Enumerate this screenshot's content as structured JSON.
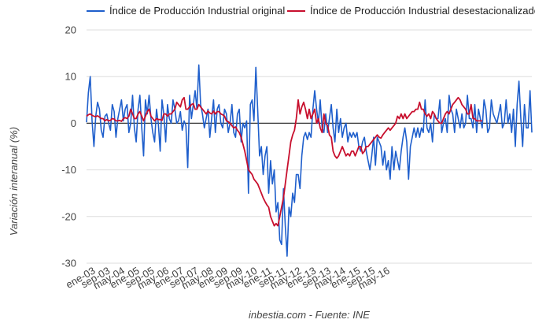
{
  "chart_data": {
    "type": "line",
    "ylabel": "Variación interanual (%)",
    "source": "inbestia.com - Fuente: INE",
    "ylim": [
      -30,
      20
    ],
    "yticks": [
      20,
      10,
      0,
      -10,
      -20,
      -30
    ],
    "grid": "horizontal",
    "legend_position": "top",
    "x_start": "2003-01",
    "x_step": "monthly",
    "xtick_labels": [
      "ene-03",
      "sep-03",
      "may-04",
      "ene-05",
      "sep-05",
      "may-06",
      "ene-07",
      "sep-07",
      "may-08",
      "ene-09",
      "sep-09",
      "may-10",
      "ene-11",
      "sep-11",
      "may-12",
      "ene-13",
      "sep-13",
      "may-14",
      "ene-15",
      "sep-15",
      "may-16"
    ],
    "series": [
      {
        "name": "Índice de Producción Industrial original",
        "color": "#1f5fcc",
        "values": [
          0.2,
          6.5,
          10,
          0.5,
          -5,
          1.5,
          4.5,
          3,
          -1.5,
          -3,
          1.5,
          2,
          0,
          -1.5,
          4,
          2.5,
          -3,
          1,
          3,
          5,
          0.5,
          3,
          4,
          -2,
          0,
          6,
          -1,
          -4,
          3,
          6,
          -1,
          -7,
          5,
          2,
          6,
          1,
          -2,
          -4,
          3,
          0,
          -6,
          5,
          2,
          -4,
          4,
          1,
          0,
          5,
          3,
          0,
          0.5,
          2.5,
          -1.5,
          0.5,
          -0.5,
          -9.5,
          6,
          1,
          4,
          7,
          3,
          12.5,
          4,
          2,
          -1,
          1,
          3,
          -3,
          1,
          5,
          -2,
          3,
          4,
          0,
          -1,
          3,
          2,
          -2,
          0,
          4,
          -2,
          -3,
          2,
          3,
          -4,
          0,
          -1,
          0.5,
          -15,
          4,
          5,
          0.5,
          12,
          3,
          -7,
          -5,
          -11,
          -7,
          -5,
          -15,
          -8,
          -13,
          -10,
          -19,
          -17,
          -25,
          -26,
          -14,
          -22,
          -28.5,
          -18,
          -20,
          -15,
          -17,
          -11,
          -11,
          -14,
          -7,
          -3,
          -2,
          -3.5,
          -2,
          -3,
          3,
          7,
          3,
          0,
          5,
          -1,
          -2,
          2,
          -2,
          1,
          4,
          -1,
          -4,
          3,
          -2,
          1,
          -3,
          -1,
          0,
          -4,
          -2,
          -3,
          -2,
          -3,
          -2,
          -5,
          -6,
          -4,
          -3,
          -6,
          -8,
          -10,
          -7,
          -3,
          -9,
          -3,
          -4,
          -5,
          -9,
          -6,
          -10,
          -8,
          -12,
          -5,
          -10,
          -6,
          -8,
          -10,
          -6,
          -3,
          -1,
          -4,
          -12,
          -5,
          -3,
          -1,
          -3,
          -1,
          -3,
          -1,
          -2,
          5,
          -1,
          -2,
          0,
          -4,
          2,
          1,
          1,
          5,
          -2,
          0,
          1,
          -2,
          6,
          3,
          2,
          -2,
          3,
          1,
          -1,
          2,
          -1,
          0,
          6,
          1,
          1,
          -1,
          4,
          -2,
          3,
          1,
          -1,
          5,
          3,
          -2,
          -1,
          5,
          2,
          1,
          0,
          2,
          4,
          -1,
          0,
          5,
          0,
          2,
          -2,
          3,
          -5,
          4,
          9,
          1,
          -5,
          4,
          -1,
          -1,
          7,
          -2
        ]
      },
      {
        "name": "Índice de Producción Industrial desestacionalizado",
        "color": "#c8102e",
        "values": [
          1.5,
          1.8,
          2,
          1.7,
          1.5,
          1.4,
          1.6,
          1.3,
          1,
          1,
          0.5,
          0.8,
          0.5,
          0.6,
          1,
          0.9,
          0.5,
          0.5,
          0.6,
          0.4,
          1,
          1.2,
          1,
          1.5,
          3,
          2,
          1,
          1,
          2,
          2.5,
          1.5,
          0.5,
          1.5,
          2.5,
          3,
          1.5,
          1,
          0.5,
          1,
          0.8,
          0.8,
          0.6,
          2,
          2,
          1.5,
          2,
          2,
          2.5,
          3,
          4.5,
          4,
          3.5,
          5,
          5.5,
          3,
          3,
          3.5,
          4,
          4.2,
          3,
          3,
          4,
          3.5,
          3,
          2.5,
          2,
          2.6,
          2.2,
          2,
          2.6,
          2,
          2.5,
          2.5,
          2,
          1.8,
          1.5,
          0.5,
          0.3,
          0,
          -0.5,
          -1,
          -0.8,
          -1.5,
          -2,
          -3,
          -4.5,
          -6,
          -8,
          -10,
          -10.5,
          -11,
          -12,
          -12.5,
          -13,
          -14,
          -15,
          -16,
          -16.8,
          -17.5,
          -18,
          -20,
          -21,
          -22,
          -21.5,
          -22,
          -20,
          -18,
          -16,
          -13,
          -10,
          -7,
          -4,
          -2.5,
          -1.5,
          1,
          5,
          2,
          3.5,
          4.5,
          3,
          1,
          3,
          1,
          2,
          3,
          0,
          1,
          -1,
          -2,
          2,
          0,
          -0.5,
          -2.5,
          -3,
          -6,
          -7,
          -7.5,
          -7,
          -6,
          -5,
          -6,
          -7,
          -6.5,
          -7,
          -6,
          -6,
          -7,
          -6,
          -5,
          -5,
          -6.5,
          -6,
          -5,
          -5,
          -4.5,
          -4,
          -3.5,
          -3,
          -2.5,
          -3,
          -3.2,
          -2.5,
          -2,
          -1.5,
          -1,
          -1.5,
          -1,
          -0.5,
          0,
          1.5,
          1,
          2,
          1,
          2,
          1,
          1.5,
          2,
          2.5,
          2.5,
          3,
          3,
          4.5,
          3,
          3,
          2,
          1.5,
          2,
          1,
          2.5,
          2,
          1,
          0.5,
          0,
          0,
          1,
          2,
          2.5,
          2,
          3,
          4,
          4.5,
          5,
          5.5,
          5,
          4,
          3.5,
          3,
          2,
          2,
          4,
          1,
          1,
          0.5,
          0.5,
          0.5,
          0.5
        ]
      }
    ]
  }
}
